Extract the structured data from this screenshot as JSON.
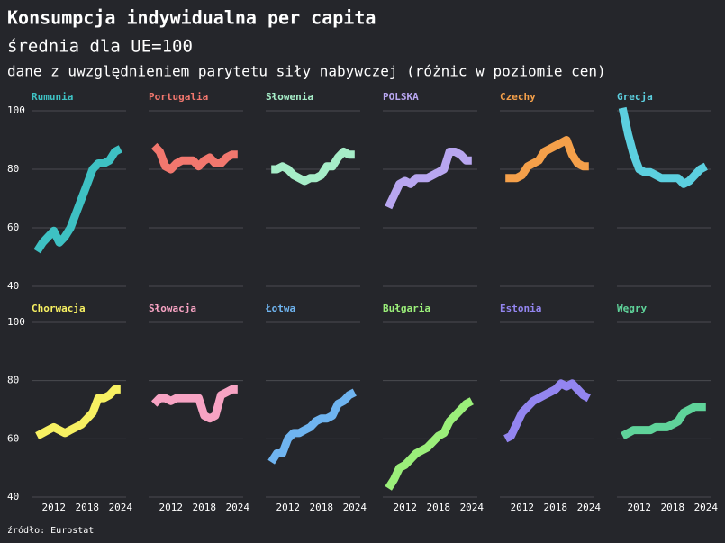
{
  "title": "Konsumpcja indywidualna per capita",
  "subtitle": "średnia dla UE=100",
  "note": "dane z uwzględnieniem parytetu siły nabywczej (różnic w poziomie cen)",
  "source": "źródło: Eurostat",
  "chart_data": [
    {
      "type": "line",
      "title": "Rumunia",
      "color": "#3ec1c3",
      "x": [
        2009,
        2010,
        2011,
        2012,
        2013,
        2014,
        2015,
        2016,
        2017,
        2018,
        2019,
        2020,
        2021,
        2022,
        2023,
        2024
      ],
      "values": [
        52,
        55,
        57,
        59,
        55,
        57,
        60,
        65,
        70,
        75,
        80,
        82,
        82,
        83,
        86,
        87
      ],
      "xlim": [
        2008,
        2025
      ],
      "xticks": [
        2012,
        2018,
        2024
      ],
      "ylim": [
        40,
        100
      ],
      "yticks": [
        40,
        60,
        80,
        100
      ],
      "grid": true
    },
    {
      "type": "line",
      "title": "Portugalia",
      "color": "#f2776e",
      "x": [
        2009,
        2010,
        2011,
        2012,
        2013,
        2014,
        2015,
        2016,
        2017,
        2018,
        2019,
        2020,
        2021,
        2022,
        2023,
        2024
      ],
      "values": [
        88,
        86,
        81,
        80,
        82,
        83,
        83,
        83,
        81,
        83,
        84,
        82,
        82,
        84,
        85,
        85
      ],
      "xlim": [
        2008,
        2025
      ],
      "xticks": [
        2012,
        2018,
        2024
      ],
      "ylim": [
        40,
        100
      ],
      "yticks": [
        40,
        60,
        80,
        100
      ],
      "grid": true
    },
    {
      "type": "line",
      "title": "Słowenia",
      "color": "#a6edc8",
      "x": [
        2009,
        2010,
        2011,
        2012,
        2013,
        2014,
        2015,
        2016,
        2017,
        2018,
        2019,
        2020,
        2021,
        2022,
        2023,
        2024
      ],
      "values": [
        80,
        80,
        81,
        80,
        78,
        77,
        76,
        77,
        77,
        78,
        81,
        81,
        84,
        86,
        85,
        85
      ],
      "xlim": [
        2008,
        2025
      ],
      "xticks": [
        2012,
        2018,
        2024
      ],
      "ylim": [
        40,
        100
      ],
      "yticks": [
        40,
        60,
        80,
        100
      ],
      "grid": true
    },
    {
      "type": "line",
      "title": "POLSKA",
      "color": "#b8a6f0",
      "x": [
        2009,
        2010,
        2011,
        2012,
        2013,
        2014,
        2015,
        2016,
        2017,
        2018,
        2019,
        2020,
        2021,
        2022,
        2023,
        2024
      ],
      "values": [
        67,
        71,
        75,
        76,
        75,
        77,
        77,
        77,
        78,
        79,
        80,
        86,
        86,
        85,
        83,
        83
      ],
      "xlim": [
        2008,
        2025
      ],
      "xticks": [
        2012,
        2018,
        2024
      ],
      "ylim": [
        40,
        100
      ],
      "yticks": [
        40,
        60,
        80,
        100
      ],
      "grid": true
    },
    {
      "type": "line",
      "title": "Czechy",
      "color": "#f5a04a",
      "x": [
        2009,
        2010,
        2011,
        2012,
        2013,
        2014,
        2015,
        2016,
        2017,
        2018,
        2019,
        2020,
        2021,
        2022,
        2023,
        2024
      ],
      "values": [
        77,
        77,
        77,
        78,
        81,
        82,
        83,
        86,
        87,
        88,
        89,
        90,
        85,
        82,
        81,
        81
      ],
      "xlim": [
        2008,
        2025
      ],
      "xticks": [
        2012,
        2018,
        2024
      ],
      "ylim": [
        40,
        100
      ],
      "yticks": [
        40,
        60,
        80,
        100
      ],
      "grid": true
    },
    {
      "type": "line",
      "title": "Grecja",
      "color": "#5ccfdf",
      "x": [
        2009,
        2010,
        2011,
        2012,
        2013,
        2014,
        2015,
        2016,
        2017,
        2018,
        2019,
        2020,
        2021,
        2022,
        2023,
        2024
      ],
      "values": [
        101,
        92,
        85,
        80,
        79,
        79,
        78,
        77,
        77,
        77,
        77,
        75,
        76,
        78,
        80,
        81
      ],
      "xlim": [
        2008,
        2025
      ],
      "xticks": [
        2012,
        2018,
        2024
      ],
      "ylim": [
        40,
        100
      ],
      "yticks": [
        40,
        60,
        80,
        100
      ],
      "grid": true
    },
    {
      "type": "line",
      "title": "Chorwacja",
      "color": "#f7f062",
      "x": [
        2009,
        2010,
        2011,
        2012,
        2013,
        2014,
        2015,
        2016,
        2017,
        2018,
        2019,
        2020,
        2021,
        2022,
        2023,
        2024
      ],
      "values": [
        61,
        62,
        63,
        64,
        63,
        62,
        63,
        64,
        65,
        67,
        69,
        74,
        74,
        75,
        77,
        77
      ],
      "xlim": [
        2008,
        2025
      ],
      "xticks": [
        2012,
        2018,
        2024
      ],
      "ylim": [
        40,
        100
      ],
      "yticks": [
        40,
        60,
        80,
        100
      ],
      "grid": true
    },
    {
      "type": "line",
      "title": "Słowacja",
      "color": "#f7a3c3",
      "x": [
        2009,
        2010,
        2011,
        2012,
        2013,
        2014,
        2015,
        2016,
        2017,
        2018,
        2019,
        2020,
        2021,
        2022,
        2023,
        2024
      ],
      "values": [
        72,
        74,
        74,
        73,
        74,
        74,
        74,
        74,
        74,
        68,
        67,
        68,
        75,
        76,
        77,
        77
      ],
      "xlim": [
        2008,
        2025
      ],
      "xticks": [
        2012,
        2018,
        2024
      ],
      "ylim": [
        40,
        100
      ],
      "yticks": [
        40,
        60,
        80,
        100
      ],
      "grid": true
    },
    {
      "type": "line",
      "title": "Łotwa",
      "color": "#6fb4f0",
      "x": [
        2009,
        2010,
        2011,
        2012,
        2013,
        2014,
        2015,
        2016,
        2017,
        2018,
        2019,
        2020,
        2021,
        2022,
        2023,
        2024
      ],
      "values": [
        52,
        55,
        55,
        60,
        62,
        62,
        63,
        64,
        66,
        67,
        67,
        68,
        72,
        73,
        75,
        76
      ],
      "xlim": [
        2008,
        2025
      ],
      "xticks": [
        2012,
        2018,
        2024
      ],
      "ylim": [
        40,
        100
      ],
      "yticks": [
        40,
        60,
        80,
        100
      ],
      "grid": true
    },
    {
      "type": "line",
      "title": "Bułgaria",
      "color": "#9bef7a",
      "x": [
        2009,
        2010,
        2011,
        2012,
        2013,
        2014,
        2015,
        2016,
        2017,
        2018,
        2019,
        2020,
        2021,
        2022,
        2023,
        2024
      ],
      "values": [
        43,
        46,
        50,
        51,
        53,
        55,
        56,
        57,
        59,
        61,
        62,
        66,
        68,
        70,
        72,
        73
      ],
      "xlim": [
        2008,
        2025
      ],
      "xticks": [
        2012,
        2018,
        2024
      ],
      "ylim": [
        40,
        100
      ],
      "yticks": [
        40,
        60,
        80,
        100
      ],
      "grid": true
    },
    {
      "type": "line",
      "title": "Estonia",
      "color": "#9385f0",
      "x": [
        2009,
        2010,
        2011,
        2012,
        2013,
        2014,
        2015,
        2016,
        2017,
        2018,
        2019,
        2020,
        2021,
        2022,
        2023,
        2024
      ],
      "values": [
        60,
        61,
        65,
        69,
        71,
        73,
        74,
        75,
        76,
        77,
        79,
        78,
        79,
        77,
        75,
        74
      ],
      "xlim": [
        2008,
        2025
      ],
      "xticks": [
        2012,
        2018,
        2024
      ],
      "ylim": [
        40,
        100
      ],
      "yticks": [
        40,
        60,
        80,
        100
      ],
      "grid": true
    },
    {
      "type": "line",
      "title": "Węgry",
      "color": "#5fd39a",
      "x": [
        2009,
        2010,
        2011,
        2012,
        2013,
        2014,
        2015,
        2016,
        2017,
        2018,
        2019,
        2020,
        2021,
        2022,
        2023,
        2024
      ],
      "values": [
        61,
        62,
        63,
        63,
        63,
        63,
        64,
        64,
        64,
        65,
        66,
        69,
        70,
        71,
        71,
        71
      ],
      "xlim": [
        2008,
        2025
      ],
      "xticks": [
        2012,
        2018,
        2024
      ],
      "ylim": [
        40,
        100
      ],
      "yticks": [
        40,
        60,
        80,
        100
      ],
      "grid": true
    }
  ]
}
